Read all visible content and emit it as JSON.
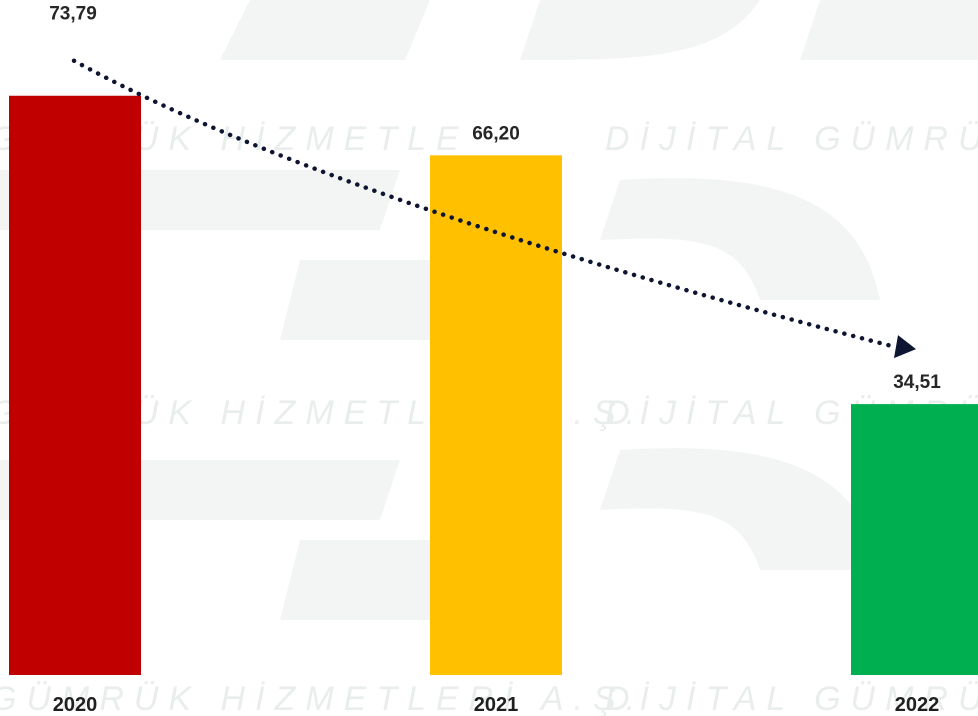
{
  "chart_data": {
    "type": "bar",
    "categories": [
      "2020",
      "2021",
      "2022"
    ],
    "values": [
      73.79,
      66.2,
      34.51
    ],
    "value_labels": [
      "73,79",
      "66,20",
      "34,51"
    ],
    "colors": [
      "#c00000",
      "#ffc000",
      "#00b050"
    ],
    "title": "",
    "xlabel": "",
    "ylabel": "",
    "ylim": [
      0,
      75
    ],
    "grid": false,
    "legend": "none",
    "trend": {
      "style": "dotted",
      "arrow": true,
      "color": "#0d1530",
      "from_category": "2020",
      "to_category": "2022"
    }
  },
  "watermark": {
    "text_line_1": "GÜMRÜK HİZMETLERİ A.Ş.",
    "text_line_2": "DİJİTAL GÜMRÜK HİZMETLERİ A.Ş.",
    "text_line_3": "GÜMRÜK HİZMETLERİ A.Ş.",
    "text_line_4": "DİJİTAL GÜMRÜK HİZMETLERİ A.Ş.",
    "text_line_5": "GÜMRÜK HİZMETLERİ A.Ş.",
    "text_line_6": "DİJİTAL GÜMRÜK HİZMETLERİ A.Ş."
  }
}
